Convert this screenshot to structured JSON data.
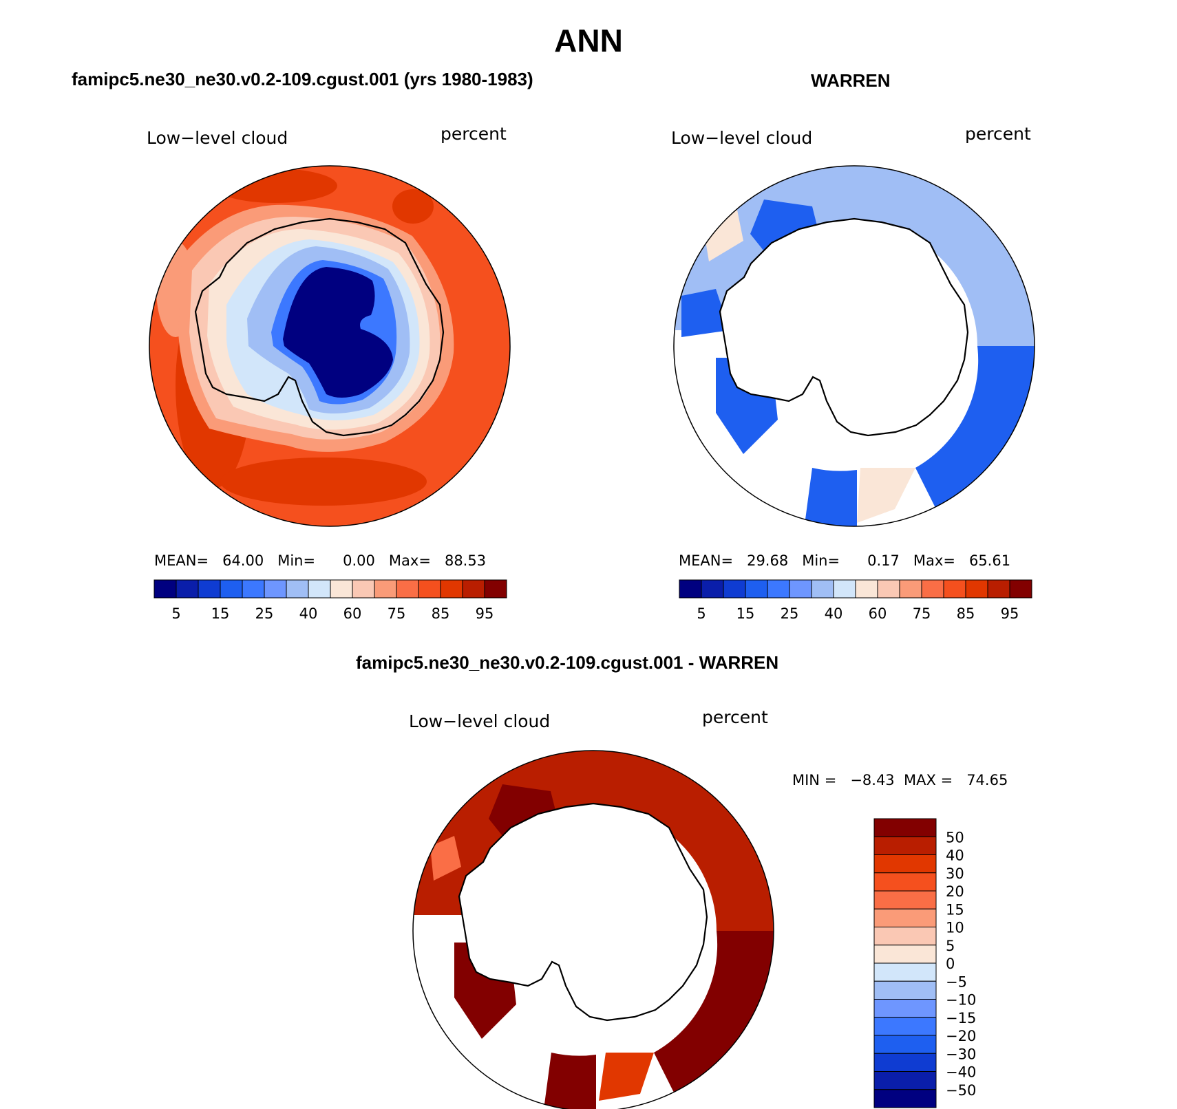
{
  "title": "ANN",
  "panels": [
    {
      "id": "model",
      "heading": "famipc5.ne30_ne30.v0.2-109.cgust.001 (yrs 1980-1983)",
      "variable": "Low−level cloud",
      "units": "percent",
      "stats": "MEAN=   64.00   Min=      0.00   Max=   88.53"
    },
    {
      "id": "obs",
      "heading": "WARREN",
      "variable": "Low−level cloud",
      "units": "percent",
      "stats": "MEAN=   29.68   Min=      0.17   Max=   65.61"
    },
    {
      "id": "diff",
      "heading": "famipc5.ne30_ne30.v0.2-109.cgust.001 - WARREN",
      "variable": "Low−level cloud",
      "units": "percent",
      "stats": "MIN =   −8.43  MAX =   74.65"
    }
  ],
  "abs_colorbar": {
    "colors": [
      "#000080",
      "#0a1eaa",
      "#0f3cd2",
      "#1e5ff0",
      "#3c78ff",
      "#6e96ff",
      "#a0bef5",
      "#d2e6fa",
      "#fae6d7",
      "#fac8b4",
      "#fa9b78",
      "#fa6e46",
      "#f5501e",
      "#e13700",
      "#b91e00",
      "#820000"
    ],
    "labels": [
      "5",
      "15",
      "25",
      "40",
      "60",
      "75",
      "85",
      "95"
    ]
  },
  "diff_colorbar": {
    "colors": [
      "#820000",
      "#b91e00",
      "#e13700",
      "#f5501e",
      "#fa6e46",
      "#fa9b78",
      "#fac8b4",
      "#fae6d7",
      "#d2e6fa",
      "#a0bef5",
      "#6e96ff",
      "#3c78ff",
      "#1e5ff0",
      "#0f3cd2",
      "#0a1eaa",
      "#000080"
    ],
    "labels": [
      "50",
      "40",
      "30",
      "20",
      "15",
      "10",
      "5",
      "0",
      "−5",
      "−10",
      "−15",
      "−20",
      "−30",
      "−40",
      "−50"
    ]
  },
  "regions": {
    "model": {
      "ocean_level": "85",
      "antarctica_interior_level": "5",
      "coastal_level": "40"
    },
    "obs": {
      "ocean_level": "40",
      "antarctica_level": "missing"
    },
    "diff": {
      "ocean_level": "50",
      "antarctica_level": "missing"
    }
  }
}
